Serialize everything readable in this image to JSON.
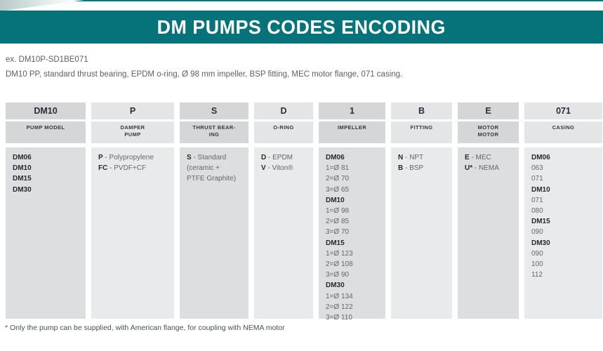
{
  "header": {
    "title": "DM PUMPS CODES ENCODING"
  },
  "example": {
    "code": "ex. DM10P-SD1BE071",
    "description": "DM10 PP, standard thrust bearing, EPDM o-ring, Ø 98 mm impeller, BSP fitting, MEC motor flange, 071 casing."
  },
  "footnote": "* Only the pump can be supplied, with American flange, for coupling with NEMA motor",
  "colors": {
    "accent_teal": "#06737b",
    "header_cell_dark": "#d4d6d8",
    "header_cell_light": "#e4e5e7",
    "body_cell_dark": "#dcdee0",
    "body_cell_light": "#e9eaeb",
    "text_dark": "#26292d",
    "text_gray": "#63676c"
  },
  "table": {
    "columns": [
      {
        "code": "DM10",
        "category": "PUMP MODEL",
        "items": [
          {
            "b": "DM06"
          },
          {
            "b": "DM10"
          },
          {
            "b": "DM15"
          },
          {
            "b": "DM30"
          }
        ]
      },
      {
        "code": "P",
        "category": "DAMPER\nPUMP",
        "items": [
          {
            "b": "P",
            "t": " - Polypropylene"
          },
          {
            "b": "FC",
            "t": " - PVDF+CF"
          }
        ]
      },
      {
        "code": "S",
        "category": "THRUST BEAR-\nING",
        "items": [
          {
            "b": "S",
            "t": " - Standard"
          },
          {
            "t": "(ceramic +"
          },
          {
            "t": "PTFE Graphite)"
          }
        ]
      },
      {
        "code": "D",
        "category": "O-RING",
        "items": [
          {
            "b": "D",
            "t": " - EPDM"
          },
          {
            "b": "V",
            "t": " - Viton®"
          }
        ]
      },
      {
        "code": "1",
        "category": "IMPELLER",
        "items": [
          {
            "b": "DM06"
          },
          {
            "t": "1=Ø 81"
          },
          {
            "t": "2=Ø 70"
          },
          {
            "t": "3=Ø 65"
          },
          {
            "b": "DM10"
          },
          {
            "t": "1=Ø 98"
          },
          {
            "t": "2=Ø 85"
          },
          {
            "t": "3=Ø 70"
          },
          {
            "b": "DM15"
          },
          {
            "t": "1=Ø 123"
          },
          {
            "t": "2=Ø 108"
          },
          {
            "t": "3=Ø 90"
          },
          {
            "b": "DM30"
          },
          {
            "t": "1=Ø 134"
          },
          {
            "t": "2=Ø 122"
          },
          {
            "t": "3=Ø 110"
          }
        ]
      },
      {
        "code": "B",
        "category": "FITTING",
        "items": [
          {
            "b": "N",
            "t": " - NPT"
          },
          {
            "b": "B",
            "t": " - BSP"
          }
        ]
      },
      {
        "code": "E",
        "category": "MOTOR\nMOTOR",
        "items": [
          {
            "b": "E",
            "t": " - MEC"
          },
          {
            "b": "U*",
            "t": " - NEMA"
          }
        ]
      },
      {
        "code": "071",
        "category": "CASING",
        "items": [
          {
            "b": "DM06"
          },
          {
            "t": "063"
          },
          {
            "t": "071"
          },
          {
            "b": "DM10"
          },
          {
            "t": "071"
          },
          {
            "t": "080"
          },
          {
            "b": "DM15"
          },
          {
            "t": "090"
          },
          {
            "b": "DM30"
          },
          {
            "t": "090"
          },
          {
            "t": "100"
          },
          {
            "t": "112"
          }
        ]
      }
    ]
  }
}
